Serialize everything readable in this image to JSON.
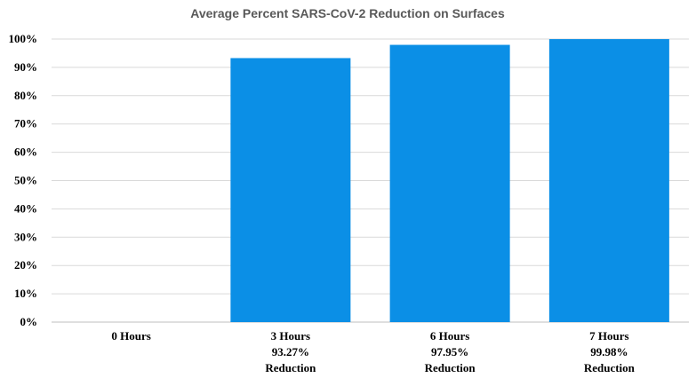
{
  "chart_data": {
    "type": "bar",
    "title": "Average Percent SARS-CoV-2 Reduction on Surfaces",
    "categories": [
      [
        "0 Hours"
      ],
      [
        "3 Hours",
        "93.27%",
        "Reduction"
      ],
      [
        "6 Hours",
        "97.95%",
        "Reduction"
      ],
      [
        "7 Hours",
        "99.98%",
        "Reduction"
      ]
    ],
    "values": [
      0,
      93.27,
      97.95,
      99.98
    ],
    "ylim": [
      0,
      100
    ],
    "yticks": [
      "0%",
      "10%",
      "20%",
      "30%",
      "40%",
      "50%",
      "60%",
      "70%",
      "80%",
      "90%",
      "100%"
    ],
    "grid": true,
    "bar_color": "#0b8fe6",
    "xlabel": "",
    "ylabel": ""
  }
}
